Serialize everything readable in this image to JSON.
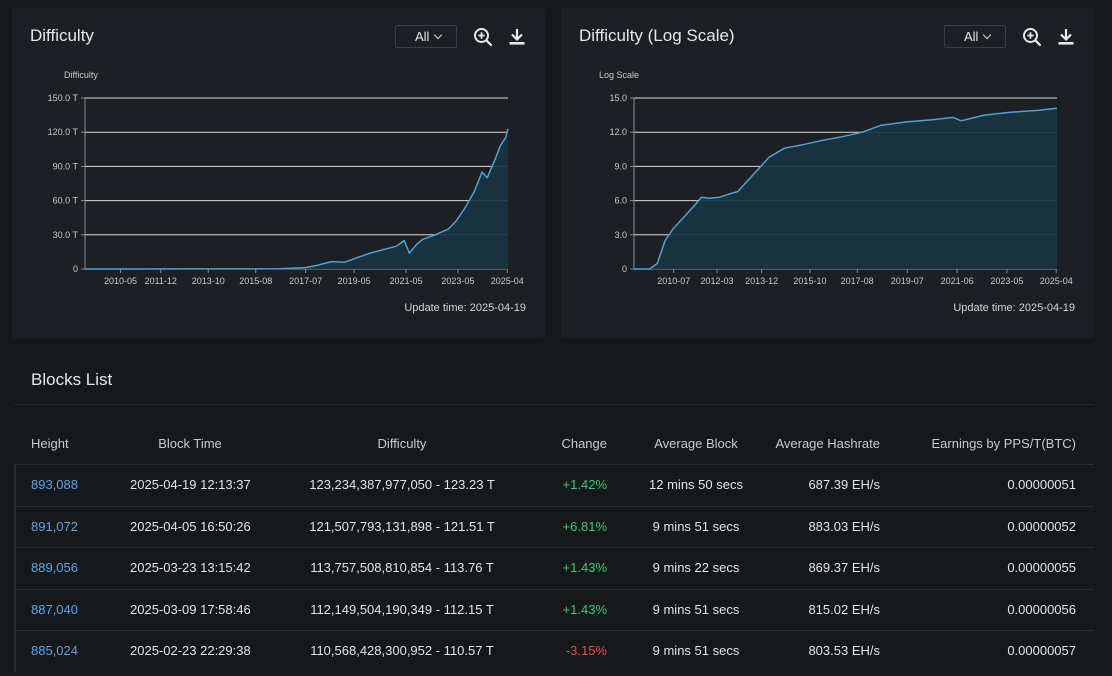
{
  "charts": [
    {
      "title": "Difficulty",
      "select_value": "All",
      "update_label": "Update time: 2025-04-19",
      "ylabel": "Difficulty"
    },
    {
      "title": "Difficulty (Log Scale)",
      "select_value": "All",
      "update_label": "Update time: 2025-04-19",
      "ylabel": "Log Scale"
    }
  ],
  "chart_data": [
    {
      "type": "area",
      "title": "Difficulty",
      "ylabel": "Difficulty",
      "ylim": [
        0,
        150
      ],
      "ytick_labels": [
        "0",
        "30.0 T",
        "60.0 T",
        "90.0 T",
        "120.0 T",
        "150.0 T"
      ],
      "ytick_values": [
        0,
        30,
        60,
        90,
        120,
        150
      ],
      "xlim": [
        2009.0,
        2025.3
      ],
      "xtick_labels": [
        "2010-05",
        "2011-12",
        "2013-10",
        "2015-08",
        "2017-07",
        "2019-05",
        "2021-05",
        "2023-05",
        "2025-04"
      ],
      "xtick_values": [
        2010.37,
        2011.92,
        2013.75,
        2015.58,
        2017.5,
        2019.37,
        2021.37,
        2023.37,
        2025.27
      ],
      "grid": true,
      "series": [
        {
          "x": [
            2009.0,
            2013.0,
            2015.0,
            2016.5,
            2017.5,
            2018.0,
            2018.5,
            2019.0,
            2019.5,
            2020.0,
            2020.5,
            2021.0,
            2021.3,
            2021.5,
            2021.8,
            2022.0,
            2022.5,
            2023.0,
            2023.3,
            2023.6,
            2024.0,
            2024.3,
            2024.5,
            2024.8,
            2025.0,
            2025.2,
            2025.3
          ],
          "y": [
            0,
            0.1,
            0.1,
            0.3,
            1.2,
            3.5,
            6.5,
            6,
            10,
            14,
            17,
            20,
            25,
            14,
            22,
            26,
            30,
            35,
            42,
            52,
            68,
            85,
            80,
            96,
            108,
            115,
            123
          ]
        }
      ]
    },
    {
      "type": "area",
      "title": "Difficulty (Log Scale)",
      "ylabel": "Log Scale",
      "ylim": [
        0,
        15
      ],
      "ytick_labels": [
        "0",
        "3.0",
        "6.0",
        "9.0",
        "12.0",
        "15.0"
      ],
      "ytick_values": [
        0,
        3,
        6,
        9,
        12,
        15
      ],
      "xlim": [
        2009.0,
        2025.3
      ],
      "xtick_labels": [
        "2010-07",
        "2012-03",
        "2013-12",
        "2015-10",
        "2017-08",
        "2019-07",
        "2021-06",
        "2023-05",
        "2025-04"
      ],
      "xtick_values": [
        2010.53,
        2012.2,
        2013.92,
        2015.78,
        2017.6,
        2019.53,
        2021.45,
        2023.37,
        2025.27
      ],
      "grid": true,
      "series": [
        {
          "x": [
            2009.0,
            2009.6,
            2009.9,
            2010.2,
            2010.5,
            2010.9,
            2011.3,
            2011.6,
            2011.9,
            2012.3,
            2012.7,
            2013.0,
            2013.4,
            2013.8,
            2014.2,
            2014.8,
            2015.5,
            2016.3,
            2017.0,
            2017.8,
            2018.5,
            2019.5,
            2020.5,
            2021.3,
            2021.6,
            2022.5,
            2023.5,
            2024.5,
            2025.3
          ],
          "y": [
            0,
            0,
            0.5,
            2.5,
            3.5,
            4.5,
            5.5,
            6.3,
            6.2,
            6.3,
            6.6,
            6.8,
            7.8,
            8.8,
            9.8,
            10.6,
            10.9,
            11.3,
            11.6,
            12.0,
            12.6,
            12.9,
            13.1,
            13.3,
            13.0,
            13.5,
            13.75,
            13.9,
            14.1
          ]
        }
      ]
    }
  ],
  "blocks": {
    "title": "Blocks List",
    "headers": {
      "height": "Height",
      "time": "Block Time",
      "difficulty": "Difficulty",
      "change": "Change",
      "avg_block": "Average Block",
      "avg_hashrate": "Average Hashrate",
      "earnings": "Earnings by PPS/T(BTC)"
    },
    "rows": [
      {
        "height": "893,088",
        "time": "2025-04-19 12:13:37",
        "difficulty": "123,234,387,977,050 - 123.23 T",
        "change": "+1.42%",
        "avg_block": "12 mins 50 secs",
        "avg_hashrate": "687.39 EH/s",
        "earnings": "0.00000051"
      },
      {
        "height": "891,072",
        "time": "2025-04-05 16:50:26",
        "difficulty": "121,507,793,131,898 - 121.51 T",
        "change": "+6.81%",
        "avg_block": "9 mins 51 secs",
        "avg_hashrate": "883.03 EH/s",
        "earnings": "0.00000052"
      },
      {
        "height": "889,056",
        "time": "2025-03-23 13:15:42",
        "difficulty": "113,757,508,810,854 - 113.76 T",
        "change": "+1.43%",
        "avg_block": "9 mins 22 secs",
        "avg_hashrate": "869.37 EH/s",
        "earnings": "0.00000055"
      },
      {
        "height": "887,040",
        "time": "2025-03-09 17:58:46",
        "difficulty": "112,149,504,190,349 - 112.15 T",
        "change": "+1.43%",
        "avg_block": "9 mins 51 secs",
        "avg_hashrate": "815.02 EH/s",
        "earnings": "0.00000056"
      },
      {
        "height": "885,024",
        "time": "2025-02-23 22:29:38",
        "difficulty": "110,568,428,300,952 - 110.57 T",
        "change": "-3.15%",
        "avg_block": "9 mins 51 secs",
        "avg_hashrate": "803.53 EH/s",
        "earnings": "0.00000057"
      }
    ]
  },
  "colors": {
    "line": "#4aa3dc",
    "area": "#1a3440",
    "positive": "#33cc70",
    "negative": "#e84a4a",
    "link": "#5aa5e8"
  },
  "icons": {
    "zoom": "zoom-in-icon",
    "download": "download-icon",
    "dropdown": "chevron-down-icon"
  }
}
